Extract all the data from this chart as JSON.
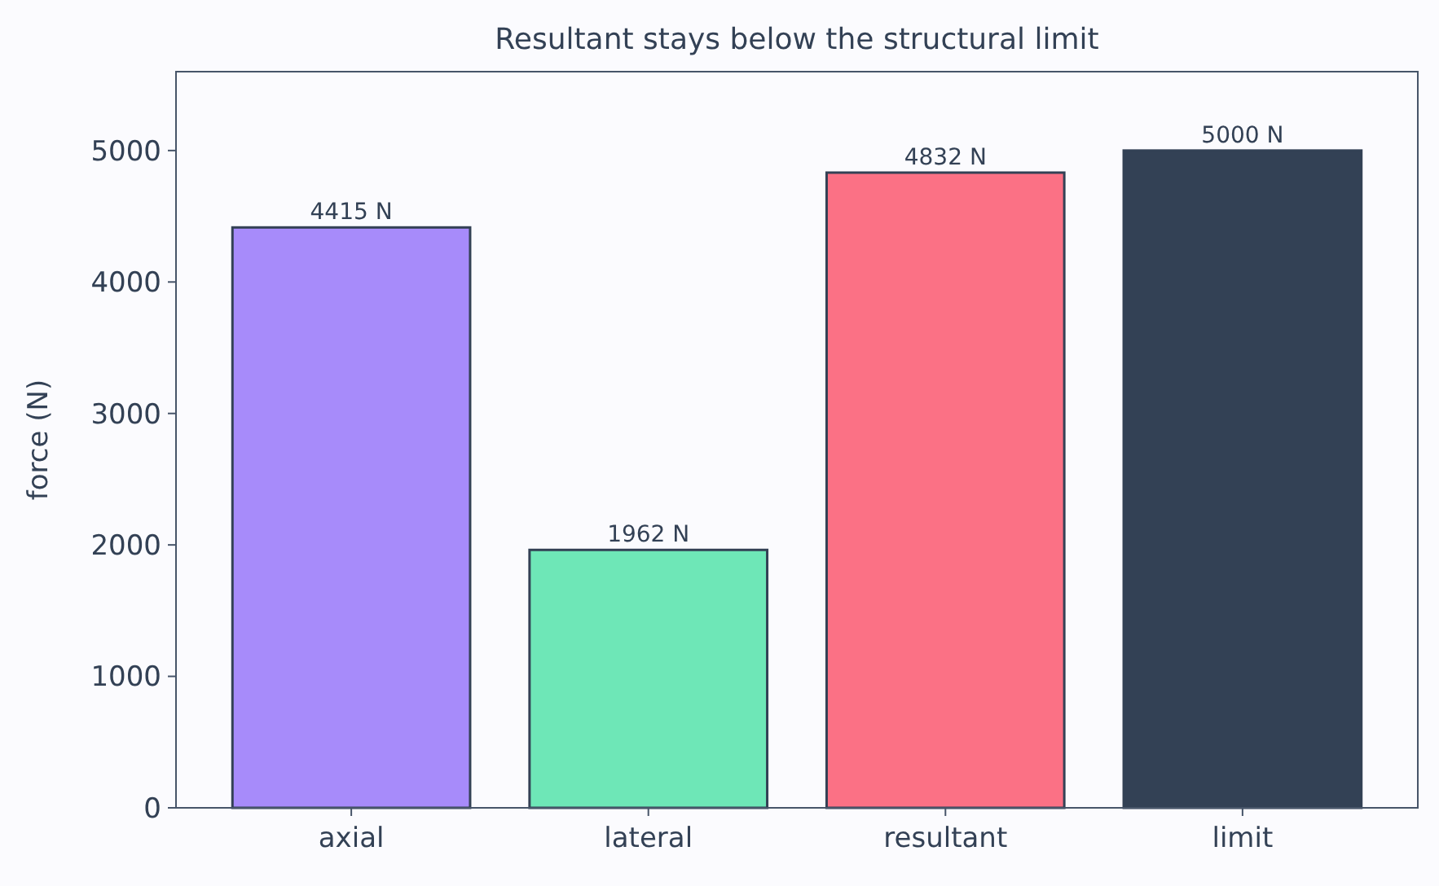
{
  "chart_data": {
    "type": "bar",
    "title": "Resultant stays below the structural limit",
    "ylabel": "force (N)",
    "categories": [
      "axial",
      "lateral",
      "resultant",
      "limit"
    ],
    "values": [
      4415,
      1962,
      4832,
      5000
    ],
    "colors": [
      "#a78bfa",
      "#6ee7b7",
      "#fb7185",
      "#334155"
    ],
    "value_labels": [
      "4415 N",
      "1962 N",
      "4832 N",
      "5000 N"
    ],
    "ylim": [
      0,
      5600
    ],
    "yticks": [
      0,
      1000,
      2000,
      3000,
      4000,
      5000
    ],
    "grid": false
  }
}
